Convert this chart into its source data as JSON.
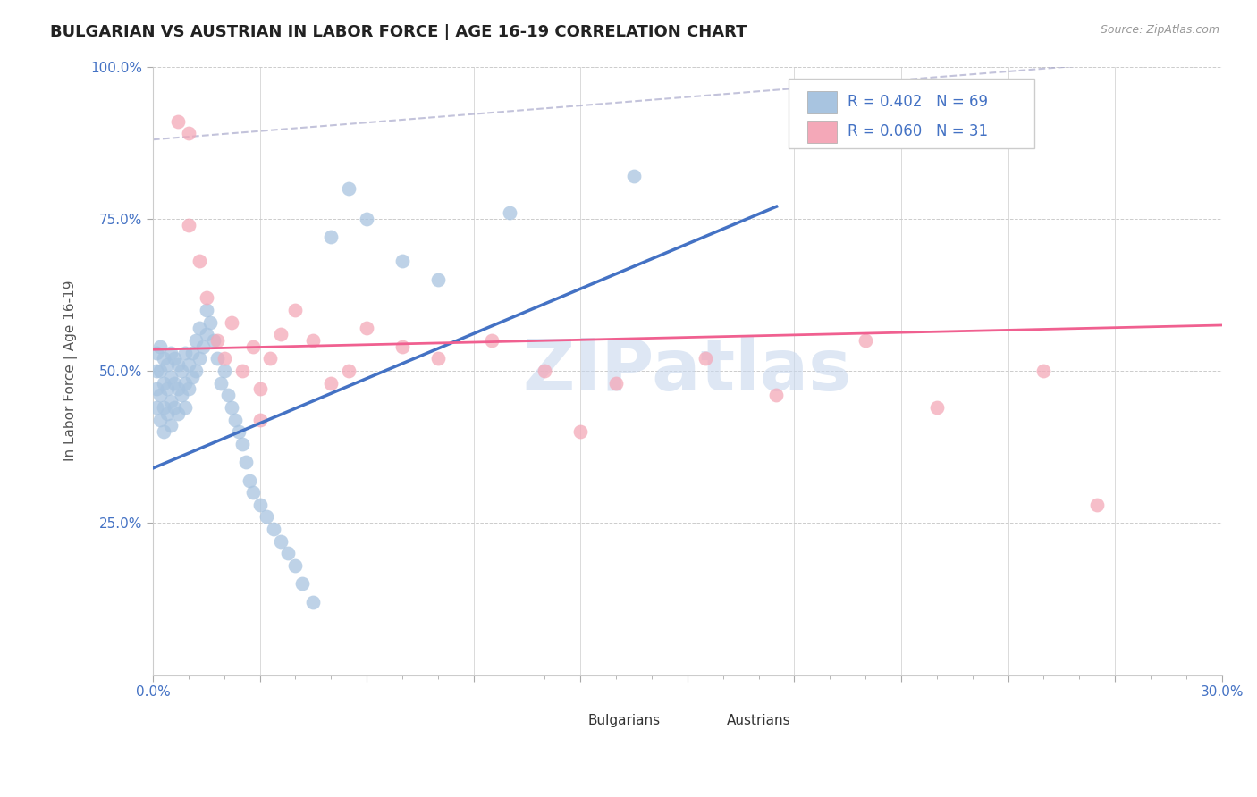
{
  "title": "BULGARIAN VS AUSTRIAN IN LABOR FORCE | AGE 16-19 CORRELATION CHART",
  "source_text": "Source: ZipAtlas.com",
  "ylabel": "In Labor Force | Age 16-19",
  "xlim": [
    0.0,
    0.3
  ],
  "ylim": [
    0.0,
    1.0
  ],
  "ytick_labels": [
    "25.0%",
    "50.0%",
    "75.0%",
    "100.0%"
  ],
  "ytick_positions": [
    0.25,
    0.5,
    0.75,
    1.0
  ],
  "r_bulgarian": 0.402,
  "n_bulgarian": 69,
  "r_austrian": 0.06,
  "n_austrian": 31,
  "color_bulgarian": "#a8c4e0",
  "color_austrian": "#f4a8b8",
  "color_blue_line": "#4472c4",
  "color_pink_line": "#f06090",
  "color_dashed": "#aaaacc",
  "watermark_color": "#c8d8ee",
  "background_color": "#ffffff",
  "title_fontsize": 13,
  "axis_label_fontsize": 11,
  "tick_fontsize": 11,
  "blue_line_x": [
    0.0,
    0.175
  ],
  "blue_line_y": [
    0.34,
    0.77
  ],
  "pink_line_x": [
    0.0,
    0.3
  ],
  "pink_line_y": [
    0.535,
    0.575
  ],
  "dashed_line_x": [
    0.0,
    0.3
  ],
  "dashed_line_y": [
    0.88,
    1.02
  ],
  "bulgarian_x": [
    0.001,
    0.001,
    0.001,
    0.001,
    0.002,
    0.002,
    0.002,
    0.002,
    0.003,
    0.003,
    0.003,
    0.003,
    0.004,
    0.004,
    0.004,
    0.005,
    0.005,
    0.005,
    0.005,
    0.006,
    0.006,
    0.006,
    0.007,
    0.007,
    0.007,
    0.008,
    0.008,
    0.009,
    0.009,
    0.009,
    0.01,
    0.01,
    0.011,
    0.011,
    0.012,
    0.012,
    0.013,
    0.013,
    0.014,
    0.015,
    0.015,
    0.016,
    0.017,
    0.018,
    0.019,
    0.02,
    0.021,
    0.022,
    0.023,
    0.024,
    0.025,
    0.026,
    0.027,
    0.028,
    0.03,
    0.032,
    0.034,
    0.036,
    0.038,
    0.04,
    0.042,
    0.045,
    0.05,
    0.055,
    0.06,
    0.07,
    0.08,
    0.1,
    0.135
  ],
  "bulgarian_y": [
    0.44,
    0.47,
    0.5,
    0.53,
    0.42,
    0.46,
    0.5,
    0.54,
    0.4,
    0.44,
    0.48,
    0.52,
    0.43,
    0.47,
    0.51,
    0.41,
    0.45,
    0.49,
    0.53,
    0.44,
    0.48,
    0.52,
    0.43,
    0.47,
    0.51,
    0.46,
    0.5,
    0.44,
    0.48,
    0.53,
    0.47,
    0.51,
    0.49,
    0.53,
    0.5,
    0.55,
    0.52,
    0.57,
    0.54,
    0.56,
    0.6,
    0.58,
    0.55,
    0.52,
    0.48,
    0.5,
    0.46,
    0.44,
    0.42,
    0.4,
    0.38,
    0.35,
    0.32,
    0.3,
    0.28,
    0.26,
    0.24,
    0.22,
    0.2,
    0.18,
    0.15,
    0.12,
    0.72,
    0.8,
    0.75,
    0.68,
    0.65,
    0.76,
    0.82
  ],
  "austrian_x": [
    0.007,
    0.01,
    0.01,
    0.013,
    0.015,
    0.018,
    0.02,
    0.022,
    0.025,
    0.028,
    0.03,
    0.033,
    0.036,
    0.04,
    0.045,
    0.05,
    0.06,
    0.07,
    0.08,
    0.095,
    0.11,
    0.13,
    0.155,
    0.175,
    0.2,
    0.22,
    0.25,
    0.265,
    0.03,
    0.055,
    0.12
  ],
  "austrian_y": [
    0.91,
    0.89,
    0.74,
    0.68,
    0.62,
    0.55,
    0.52,
    0.58,
    0.5,
    0.54,
    0.47,
    0.52,
    0.56,
    0.6,
    0.55,
    0.48,
    0.57,
    0.54,
    0.52,
    0.55,
    0.5,
    0.48,
    0.52,
    0.46,
    0.55,
    0.44,
    0.5,
    0.28,
    0.42,
    0.5,
    0.4
  ]
}
